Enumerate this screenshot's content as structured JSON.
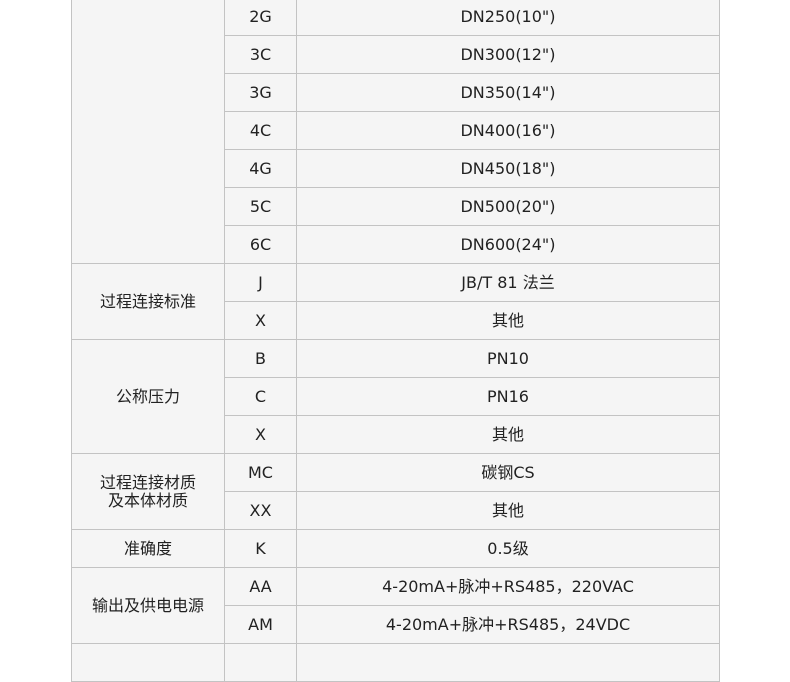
{
  "rows_top_group": [
    {
      "code": "2G",
      "desc": "DN250(10\")"
    },
    {
      "code": "3C",
      "desc": "DN300(12\")"
    },
    {
      "code": "3G",
      "desc": "DN350(14\")"
    },
    {
      "code": "4C",
      "desc": "DN400(16\")"
    },
    {
      "code": "4G",
      "desc": "DN450(18\")"
    },
    {
      "code": "5C",
      "desc": "DN500(20\")"
    },
    {
      "code": "6C",
      "desc": "DN600(24\")"
    }
  ],
  "groups": {
    "connection_standard": {
      "label": "过程连接标准",
      "rows": [
        {
          "code": "J",
          "desc": "JB/T 81 法兰"
        },
        {
          "code": "X",
          "desc": "其他"
        }
      ]
    },
    "nominal_pressure": {
      "label": "公称压力",
      "rows": [
        {
          "code": "B",
          "desc": "PN10"
        },
        {
          "code": "C",
          "desc": "PN16"
        },
        {
          "code": "X",
          "desc": "其他"
        }
      ]
    },
    "material": {
      "label_line1": "过程连接材质",
      "label_line2": "及本体材质",
      "rows": [
        {
          "code": "MC",
          "desc": "碳钢CS"
        },
        {
          "code": "XX",
          "desc": "其他"
        }
      ]
    },
    "accuracy": {
      "label": "准确度",
      "rows": [
        {
          "code": "K",
          "desc": "0.5级"
        }
      ]
    },
    "output_power": {
      "label": "输出及供电电源",
      "rows": [
        {
          "code": "AA",
          "desc": "4-20mA+脉冲+RS485，220VAC"
        },
        {
          "code": "AM",
          "desc": "4-20mA+脉冲+RS485，24VDC"
        }
      ]
    }
  }
}
